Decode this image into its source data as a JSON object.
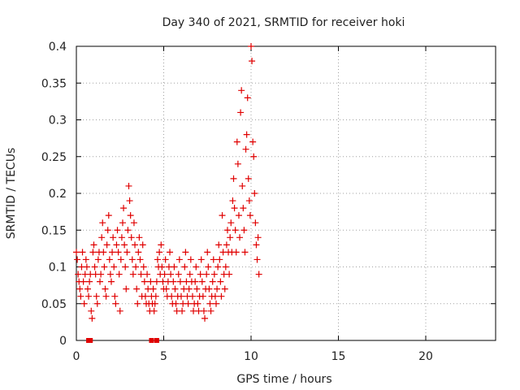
{
  "chart_data": {
    "type": "scatter",
    "title": "Day 340 of 2021, SRMTID for receiver hoki",
    "xlabel": "GPS time / hours",
    "ylabel": "SRMTID / TECUs",
    "xlim": [
      0,
      24
    ],
    "ylim": [
      0,
      0.4
    ],
    "xticks": [
      0,
      5,
      10,
      15,
      20
    ],
    "xtick_labels": [
      "0",
      "5",
      "10",
      "15",
      "20"
    ],
    "yticks": [
      0,
      0.05,
      0.1,
      0.15,
      0.2,
      0.25,
      0.3,
      0.35,
      0.4
    ],
    "ytick_labels": [
      "0",
      "0.05",
      "0.1",
      "0.15",
      "0.2",
      "0.25",
      "0.3",
      "0.35",
      "0.4"
    ],
    "grid": true,
    "marker": "+",
    "color": "#e00000",
    "zero_markers": [
      0.7,
      0.8,
      4.3,
      4.6
    ],
    "series": [
      {
        "name": "SRMTID",
        "points": [
          [
            0.0,
            0.12
          ],
          [
            0.05,
            0.11
          ],
          [
            0.1,
            0.09
          ],
          [
            0.15,
            0.08
          ],
          [
            0.2,
            0.07
          ],
          [
            0.25,
            0.06
          ],
          [
            0.3,
            0.1
          ],
          [
            0.35,
            0.12
          ],
          [
            0.4,
            0.08
          ],
          [
            0.45,
            0.05
          ],
          [
            0.5,
            0.09
          ],
          [
            0.55,
            0.11
          ],
          [
            0.6,
            0.1
          ],
          [
            0.65,
            0.07
          ],
          [
            0.7,
            0.06
          ],
          [
            0.75,
            0.08
          ],
          [
            0.8,
            0.09
          ],
          [
            0.85,
            0.04
          ],
          [
            0.9,
            0.03
          ],
          [
            0.95,
            0.12
          ],
          [
            1.0,
            0.13
          ],
          [
            1.05,
            0.1
          ],
          [
            1.1,
            0.09
          ],
          [
            1.15,
            0.06
          ],
          [
            1.2,
            0.05
          ],
          [
            1.25,
            0.11
          ],
          [
            1.3,
            0.12
          ],
          [
            1.35,
            0.08
          ],
          [
            1.4,
            0.09
          ],
          [
            1.45,
            0.14
          ],
          [
            1.5,
            0.16
          ],
          [
            1.55,
            0.12
          ],
          [
            1.6,
            0.1
          ],
          [
            1.65,
            0.07
          ],
          [
            1.7,
            0.06
          ],
          [
            1.75,
            0.13
          ],
          [
            1.8,
            0.15
          ],
          [
            1.85,
            0.17
          ],
          [
            1.9,
            0.11
          ],
          [
            1.95,
            0.09
          ],
          [
            2.0,
            0.08
          ],
          [
            2.05,
            0.12
          ],
          [
            2.1,
            0.14
          ],
          [
            2.15,
            0.1
          ],
          [
            2.2,
            0.06
          ],
          [
            2.25,
            0.05
          ],
          [
            2.3,
            0.13
          ],
          [
            2.35,
            0.15
          ],
          [
            2.4,
            0.12
          ],
          [
            2.45,
            0.09
          ],
          [
            2.5,
            0.04
          ],
          [
            2.55,
            0.11
          ],
          [
            2.6,
            0.14
          ],
          [
            2.65,
            0.16
          ],
          [
            2.7,
            0.18
          ],
          [
            2.75,
            0.13
          ],
          [
            2.8,
            0.1
          ],
          [
            2.85,
            0.07
          ],
          [
            2.9,
            0.12
          ],
          [
            2.95,
            0.15
          ],
          [
            3.0,
            0.21
          ],
          [
            3.05,
            0.19
          ],
          [
            3.1,
            0.17
          ],
          [
            3.15,
            0.14
          ],
          [
            3.2,
            0.11
          ],
          [
            3.25,
            0.09
          ],
          [
            3.3,
            0.16
          ],
          [
            3.35,
            0.13
          ],
          [
            3.4,
            0.1
          ],
          [
            3.45,
            0.07
          ],
          [
            3.5,
            0.05
          ],
          [
            3.55,
            0.12
          ],
          [
            3.6,
            0.14
          ],
          [
            3.65,
            0.11
          ],
          [
            3.7,
            0.09
          ],
          [
            3.75,
            0.06
          ],
          [
            3.8,
            0.13
          ],
          [
            3.85,
            0.1
          ],
          [
            3.9,
            0.08
          ],
          [
            3.95,
            0.06
          ],
          [
            4.0,
            0.05
          ],
          [
            4.05,
            0.09
          ],
          [
            4.1,
            0.07
          ],
          [
            4.15,
            0.05
          ],
          [
            4.2,
            0.04
          ],
          [
            4.25,
            0.08
          ],
          [
            4.3,
            0.06
          ],
          [
            4.35,
            0.05
          ],
          [
            4.4,
            0.07
          ],
          [
            4.45,
            0.04
          ],
          [
            4.5,
            0.05
          ],
          [
            4.55,
            0.06
          ],
          [
            4.6,
            0.08
          ],
          [
            4.65,
            0.11
          ],
          [
            4.7,
            0.1
          ],
          [
            4.75,
            0.12
          ],
          [
            4.8,
            0.09
          ],
          [
            4.85,
            0.13
          ],
          [
            4.9,
            0.1
          ],
          [
            4.95,
            0.08
          ],
          [
            5.0,
            0.07
          ],
          [
            5.05,
            0.09
          ],
          [
            5.1,
            0.11
          ],
          [
            5.15,
            0.07
          ],
          [
            5.2,
            0.06
          ],
          [
            5.25,
            0.08
          ],
          [
            5.3,
            0.1
          ],
          [
            5.35,
            0.12
          ],
          [
            5.4,
            0.09
          ],
          [
            5.45,
            0.06
          ],
          [
            5.5,
            0.05
          ],
          [
            5.55,
            0.08
          ],
          [
            5.6,
            0.1
          ],
          [
            5.65,
            0.07
          ],
          [
            5.7,
            0.05
          ],
          [
            5.75,
            0.04
          ],
          [
            5.8,
            0.06
          ],
          [
            5.85,
            0.09
          ],
          [
            5.9,
            0.11
          ],
          [
            5.95,
            0.08
          ],
          [
            6.0,
            0.06
          ],
          [
            6.05,
            0.04
          ],
          [
            6.1,
            0.05
          ],
          [
            6.15,
            0.07
          ],
          [
            6.2,
            0.1
          ],
          [
            6.25,
            0.12
          ],
          [
            6.3,
            0.08
          ],
          [
            6.35,
            0.06
          ],
          [
            6.4,
            0.05
          ],
          [
            6.45,
            0.07
          ],
          [
            6.5,
            0.09
          ],
          [
            6.55,
            0.11
          ],
          [
            6.6,
            0.08
          ],
          [
            6.65,
            0.06
          ],
          [
            6.7,
            0.04
          ],
          [
            6.75,
            0.05
          ],
          [
            6.8,
            0.08
          ],
          [
            6.85,
            0.1
          ],
          [
            6.9,
            0.07
          ],
          [
            6.95,
            0.05
          ],
          [
            7.0,
            0.04
          ],
          [
            7.05,
            0.06
          ],
          [
            7.1,
            0.09
          ],
          [
            7.15,
            0.11
          ],
          [
            7.2,
            0.08
          ],
          [
            7.25,
            0.06
          ],
          [
            7.3,
            0.04
          ],
          [
            7.35,
            0.03
          ],
          [
            7.4,
            0.07
          ],
          [
            7.45,
            0.09
          ],
          [
            7.5,
            0.12
          ],
          [
            7.55,
            0.1
          ],
          [
            7.6,
            0.07
          ],
          [
            7.65,
            0.05
          ],
          [
            7.7,
            0.04
          ],
          [
            7.75,
            0.06
          ],
          [
            7.8,
            0.08
          ],
          [
            7.85,
            0.11
          ],
          [
            7.9,
            0.09
          ],
          [
            7.95,
            0.06
          ],
          [
            8.0,
            0.05
          ],
          [
            8.05,
            0.07
          ],
          [
            8.1,
            0.1
          ],
          [
            8.15,
            0.13
          ],
          [
            8.2,
            0.11
          ],
          [
            8.25,
            0.08
          ],
          [
            8.3,
            0.06
          ],
          [
            8.35,
            0.17
          ],
          [
            8.4,
            0.12
          ],
          [
            8.45,
            0.09
          ],
          [
            8.5,
            0.07
          ],
          [
            8.55,
            0.1
          ],
          [
            8.6,
            0.13
          ],
          [
            8.65,
            0.15
          ],
          [
            8.7,
            0.12
          ],
          [
            8.75,
            0.09
          ],
          [
            8.8,
            0.14
          ],
          [
            8.85,
            0.16
          ],
          [
            8.9,
            0.12
          ],
          [
            8.95,
            0.19
          ],
          [
            9.0,
            0.22
          ],
          [
            9.05,
            0.18
          ],
          [
            9.1,
            0.15
          ],
          [
            9.15,
            0.12
          ],
          [
            9.2,
            0.27
          ],
          [
            9.25,
            0.24
          ],
          [
            9.3,
            0.17
          ],
          [
            9.35,
            0.14
          ],
          [
            9.4,
            0.31
          ],
          [
            9.45,
            0.34
          ],
          [
            9.5,
            0.21
          ],
          [
            9.55,
            0.18
          ],
          [
            9.6,
            0.15
          ],
          [
            9.65,
            0.12
          ],
          [
            9.7,
            0.26
          ],
          [
            9.75,
            0.28
          ],
          [
            9.8,
            0.33
          ],
          [
            9.85,
            0.22
          ],
          [
            9.9,
            0.19
          ],
          [
            9.95,
            0.17
          ],
          [
            10.0,
            0.4
          ],
          [
            10.05,
            0.38
          ],
          [
            10.1,
            0.27
          ],
          [
            10.15,
            0.25
          ],
          [
            10.2,
            0.2
          ],
          [
            10.25,
            0.16
          ],
          [
            10.3,
            0.13
          ],
          [
            10.35,
            0.11
          ],
          [
            10.4,
            0.14
          ],
          [
            10.45,
            0.09
          ]
        ]
      }
    ]
  }
}
